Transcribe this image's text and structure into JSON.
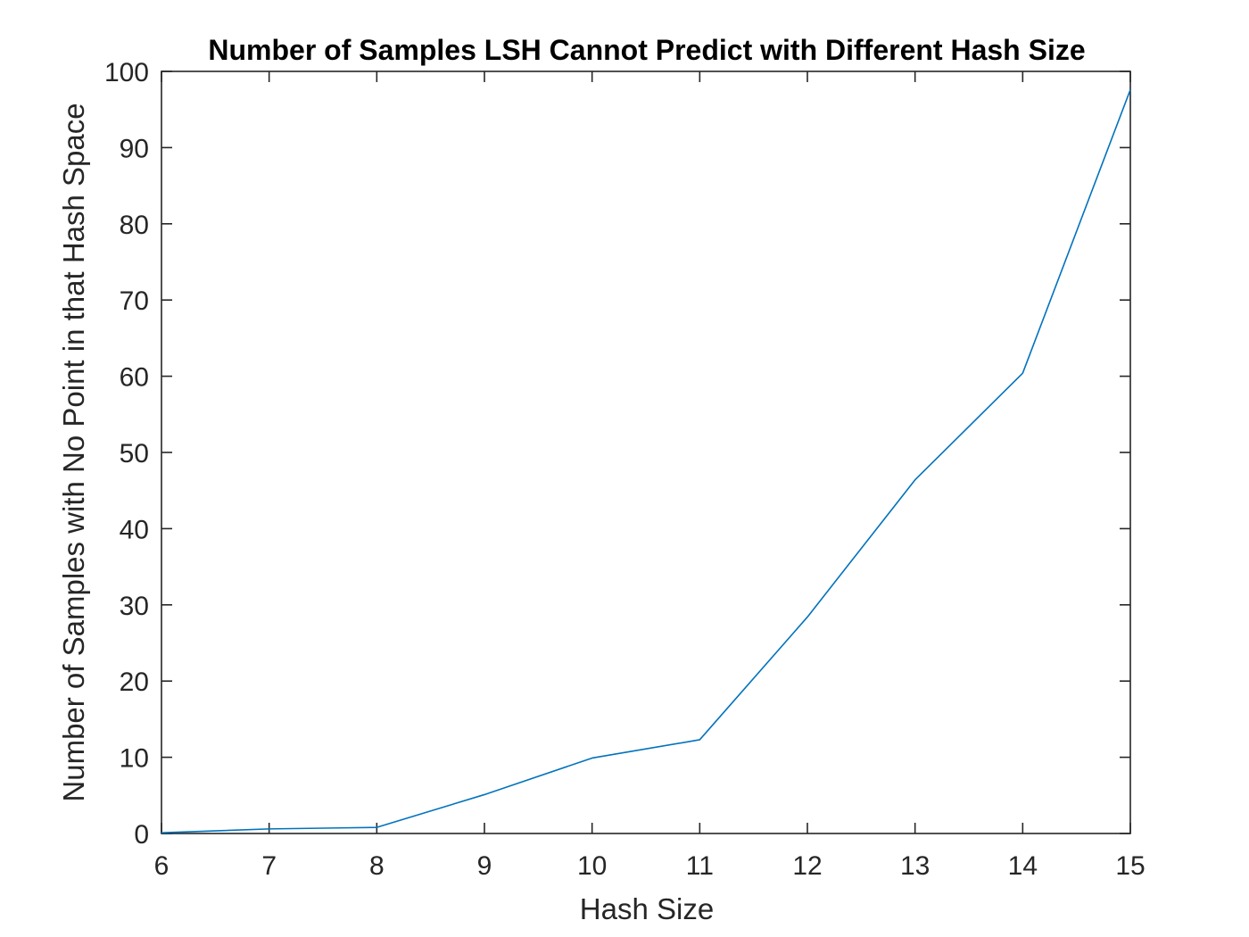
{
  "chart_data": {
    "type": "line",
    "title": "Number of Samples LSH Cannot Predict with Different Hash Size",
    "xlabel": "Hash Size",
    "ylabel": "Number of Samples with No Point in that Hash Space",
    "xlim": [
      6,
      15
    ],
    "ylim": [
      0,
      100
    ],
    "x_ticks": [
      6,
      7,
      8,
      9,
      10,
      11,
      12,
      13,
      14,
      15
    ],
    "y_ticks": [
      0,
      10,
      20,
      30,
      40,
      50,
      60,
      70,
      80,
      90,
      100
    ],
    "grid": false,
    "series": [
      {
        "x": [
          6,
          7,
          8,
          9,
          10,
          11,
          12,
          13,
          14,
          15
        ],
        "values": [
          0.1,
          0.6,
          0.8,
          5.1,
          9.9,
          12.3,
          28.4,
          46.4,
          60.4,
          97.6
        ],
        "color": "#0072BD"
      }
    ]
  }
}
